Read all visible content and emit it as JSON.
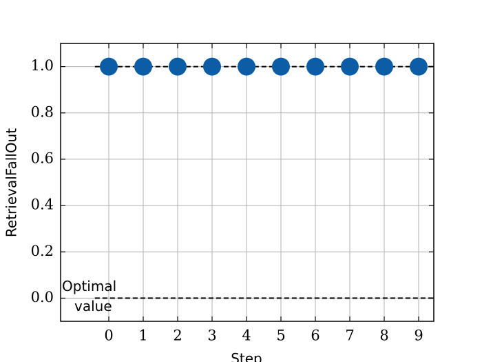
{
  "chart_data": {
    "type": "scatter",
    "x_label": "Step",
    "y_label": "RetrievalFallOut",
    "x": [
      0,
      1,
      2,
      3,
      4,
      5,
      6,
      7,
      8,
      9
    ],
    "series": [
      {
        "color": "#0C5DA5",
        "values": [
          1,
          1,
          1,
          1,
          1,
          1,
          1,
          1,
          1,
          1
        ]
      }
    ],
    "reference_lines": [
      1,
      0
    ],
    "annotation": [
      "Optimal",
      "value"
    ],
    "xlim": [
      -1.4,
      9.44
    ],
    "ylim": [
      -0.1,
      1.1
    ],
    "xticks": [
      0,
      1,
      2,
      3,
      4,
      5,
      6,
      7,
      8,
      9
    ],
    "yticks": [
      {
        "value": 0,
        "label": "0.0"
      },
      0.2,
      0.4,
      0.6,
      0.8,
      {
        "value": 1,
        "label": "1.0"
      }
    ],
    "grid": true
  }
}
